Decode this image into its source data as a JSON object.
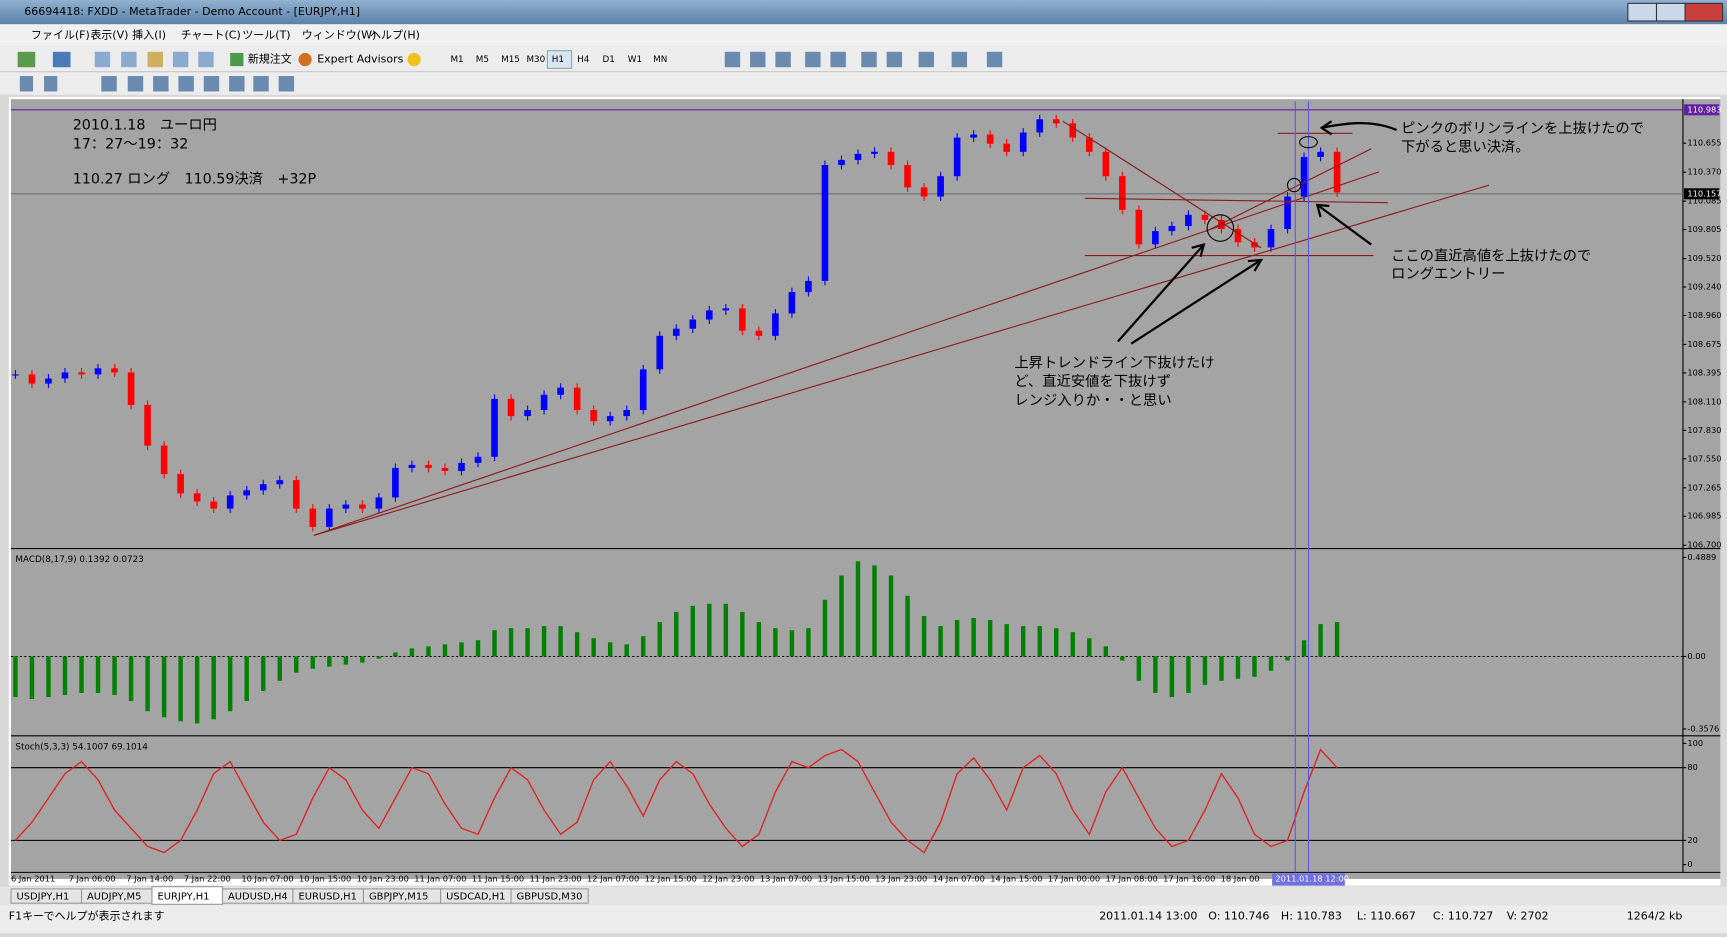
{
  "window": {
    "title": "66694418: FXDD - MetaTrader - Demo Account - [EURJPY,H1]",
    "menu": [
      "ファイル(F)",
      "表示(V)",
      "挿入(I)",
      "チャート(C)",
      "ツール(T)",
      "ウィンドウ(W)",
      "ヘルプ(H)"
    ],
    "new_order": "新規注文",
    "expert_advisors": "Expert Advisors",
    "timeframes": [
      "M1",
      "M5",
      "M15",
      "M30",
      "H1",
      "H4",
      "D1",
      "W1",
      "MN"
    ]
  },
  "chart": {
    "notes": [
      "2010.1.18　ユーロ円",
      "17：27～19：32",
      "110.27 ロング　110.59決済　+32P"
    ],
    "exit_note": [
      "ピンクのボリンラインを上抜けたので",
      "下がると思い決済。"
    ],
    "entry_note": [
      "ここの直近高値を上抜けたので",
      "ロングエントリー"
    ],
    "range_note": [
      "上昇トレンドライン下抜けたけ",
      "ど、直近安値を下抜けず",
      "レンジ入りか・・と思い"
    ],
    "ylim": [
      106.678,
      111.066
    ],
    "yticks": [
      110.655,
      {
        "value": 110.37,
        "label": "110.370"
      },
      110.085,
      109.805,
      {
        "value": 109.52,
        "label": "109.520"
      },
      {
        "value": 109.24,
        "label": "109.240"
      },
      {
        "value": 108.96,
        "label": "108.960"
      },
      108.675,
      108.395,
      {
        "value": 108.11,
        "label": "108.110"
      },
      {
        "value": 107.83,
        "label": "107.830"
      },
      {
        "value": 107.55,
        "label": "107.550"
      },
      107.265,
      106.985,
      {
        "value": 106.7,
        "label": "106.700"
      }
    ],
    "price_markers": [
      110.983,
      110.157
    ],
    "up_color": "#0000ff",
    "down_color": "#ff0000",
    "closes": [
      108.38,
      108.29,
      108.34,
      108.4,
      108.38,
      108.44,
      108.4,
      108.08,
      107.68,
      107.4,
      107.21,
      107.13,
      107.06,
      107.19,
      107.24,
      107.3,
      107.34,
      107.06,
      106.88,
      107.06,
      107.1,
      107.06,
      107.17,
      107.46,
      107.49,
      107.46,
      107.43,
      107.51,
      107.57,
      108.14,
      107.97,
      108.03,
      108.18,
      108.25,
      108.03,
      107.92,
      107.97,
      108.03,
      108.43,
      108.76,
      108.83,
      108.92,
      109.01,
      109.03,
      108.81,
      108.76,
      108.98,
      109.19,
      109.3,
      110.44,
      110.49,
      110.55,
      110.57,
      110.44,
      110.22,
      110.13,
      110.33,
      110.71,
      110.74,
      110.65,
      110.57,
      110.76,
      110.89,
      110.85,
      110.71,
      110.57,
      110.33,
      110.0,
      109.66,
      109.79,
      109.84,
      109.95,
      109.9,
      109.81,
      109.68,
      109.63,
      109.81,
      110.13,
      110.52,
      110.57,
      110.17
    ],
    "time_labels": [
      "6 Jan 2011",
      "7 Jan 06:00",
      "7 Jan 14:00",
      "7 Jan 22:00",
      "10 Jan 07:00",
      "10 Jan 15:00",
      "10 Jan 23:00",
      "11 Jan 07:00",
      "11 Jan 15:00",
      "11 Jan 23:00",
      "12 Jan 07:00",
      "12 Jan 15:00",
      "12 Jan 23:00",
      "13 Jan 07:00",
      "13 Jan 15:00",
      "13 Jan 23:00",
      "14 Jan 07:00",
      "14 Jan 15:00",
      "17 Jan 00:00",
      "17 Jan 08:00",
      "17 Jan 16:00",
      "18 Jan 00"
    ],
    "time_highlight": "2011.01.18 12:00"
  },
  "macd": {
    "label": "MACD(8,17,9) 0.1392 0.0723",
    "ylim": [
      -0.386,
      0.522
    ],
    "yticks": [
      0.4889,
      {
        "value": 0,
        "label": "0.00"
      },
      -0.3576
    ],
    "color": "#008000",
    "values": [
      -0.2,
      -0.21,
      -0.2,
      -0.19,
      -0.18,
      -0.18,
      -0.19,
      -0.22,
      -0.27,
      -0.3,
      -0.32,
      -0.33,
      -0.31,
      -0.27,
      -0.22,
      -0.17,
      -0.12,
      -0.08,
      -0.06,
      -0.05,
      -0.04,
      -0.03,
      -0.01,
      0.02,
      0.04,
      0.05,
      0.06,
      0.07,
      0.08,
      0.13,
      0.14,
      0.14,
      0.15,
      0.15,
      0.12,
      0.09,
      0.07,
      0.06,
      0.1,
      0.17,
      0.22,
      0.25,
      0.26,
      0.26,
      0.22,
      0.17,
      0.14,
      0.13,
      0.14,
      0.28,
      0.4,
      0.47,
      0.45,
      0.4,
      0.3,
      0.2,
      0.15,
      0.18,
      0.19,
      0.18,
      0.16,
      0.15,
      0.15,
      0.14,
      0.12,
      0.09,
      0.05,
      -0.02,
      -0.12,
      -0.18,
      -0.2,
      -0.18,
      -0.14,
      -0.12,
      -0.11,
      -0.1,
      -0.07,
      -0.02,
      0.08,
      0.16,
      0.17
    ]
  },
  "stoch": {
    "label": "Stoch(5,3,3) 54.1007 69.1014",
    "ylim": [
      -6.4,
      104.5
    ],
    "yticks": [
      100,
      80,
      20,
      0
    ],
    "levels": [
      80,
      20
    ],
    "color": "#e02020",
    "values": [
      20,
      35,
      55,
      75,
      85,
      70,
      45,
      30,
      15,
      10,
      20,
      45,
      75,
      85,
      60,
      35,
      20,
      25,
      55,
      80,
      70,
      45,
      30,
      55,
      80,
      75,
      50,
      30,
      25,
      55,
      80,
      70,
      45,
      25,
      35,
      70,
      85,
      65,
      40,
      70,
      85,
      75,
      50,
      30,
      15,
      25,
      60,
      85,
      80,
      90,
      95,
      85,
      60,
      35,
      20,
      10,
      35,
      75,
      88,
      70,
      45,
      80,
      90,
      75,
      45,
      25,
      60,
      80,
      55,
      30,
      15,
      20,
      45,
      75,
      55,
      25,
      15,
      20,
      60,
      95,
      80
    ]
  },
  "tabs": [
    "USDJPY,H1",
    "AUDJPY,M5",
    "EURJPY,H1",
    "AUDUSD,H4",
    "EURUSD,H1",
    "GBPJPY,M15",
    "USDCAD,H1",
    "GBPUSD,M30"
  ],
  "active_tab": 2,
  "status": {
    "help": "F1キーでヘルプが表示されます",
    "time": "2011.01.14 13:00",
    "open": "O: 110.746",
    "high": "H: 110.783",
    "low": "L: 110.667",
    "close": "C: 110.727",
    "volume": "V: 2702",
    "traffic": "1264/2 kb"
  }
}
